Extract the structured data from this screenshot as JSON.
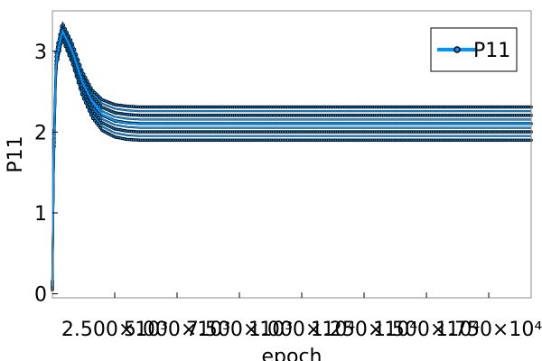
{
  "chart_data": {
    "type": "line",
    "title": "",
    "xlabel": "epoch",
    "ylabel": "P11",
    "xlim": [
      1,
      19200
    ],
    "ylim": [
      -0.05,
      3.5
    ],
    "grid": false,
    "legend_position": "top-right",
    "x_ticks": [
      {
        "value": 2500,
        "label": "2.500×10³"
      },
      {
        "value": 5000,
        "label": "5.000×10³"
      },
      {
        "value": 7500,
        "label": "7.500×10³"
      },
      {
        "value": 10000,
        "label": "1.000×10⁴"
      },
      {
        "value": 12500,
        "label": "1.250×10⁴"
      },
      {
        "value": 15000,
        "label": "1.500×10⁴"
      },
      {
        "value": 17500,
        "label": "1.750×10⁴"
      }
    ],
    "y_ticks": [
      {
        "value": 0,
        "label": "0"
      },
      {
        "value": 1,
        "label": "1"
      },
      {
        "value": 2,
        "label": "2"
      },
      {
        "value": 3,
        "label": "3"
      }
    ],
    "series": [
      {
        "name": "P11",
        "color": "#0096ff",
        "marker_edge_color": "#000000",
        "upper_envelope": {
          "x": [
            1,
            50,
            150,
            400,
            800,
            1200,
            1600,
            2000,
            2500,
            3000,
            3500,
            4000,
            5000,
            19200
          ],
          "y": [
            0.15,
            1.7,
            3.0,
            3.35,
            3.1,
            2.75,
            2.52,
            2.4,
            2.34,
            2.32,
            2.31,
            2.31,
            2.31,
            2.31
          ]
        },
        "center": {
          "x": [
            1,
            50,
            150,
            400,
            800,
            1200,
            1600,
            2000,
            2500,
            3000,
            3500,
            4000,
            5000,
            19200
          ],
          "y": [
            0.1,
            1.6,
            2.9,
            3.25,
            3.0,
            2.62,
            2.38,
            2.22,
            2.14,
            2.11,
            2.1,
            2.1,
            2.1,
            2.1
          ]
        },
        "lower_envelope": {
          "x": [
            1,
            50,
            150,
            400,
            800,
            1200,
            1600,
            2000,
            2500,
            3000,
            3500,
            4000,
            5000,
            19200
          ],
          "y": [
            0.05,
            1.5,
            2.8,
            3.15,
            2.85,
            2.45,
            2.18,
            2.02,
            1.94,
            1.91,
            1.9,
            1.9,
            1.9,
            1.9
          ]
        }
      }
    ]
  }
}
